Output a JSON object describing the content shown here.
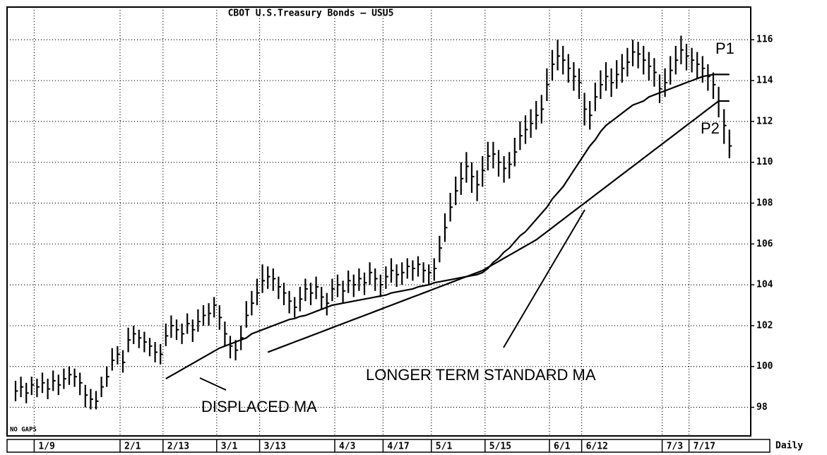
{
  "chart_data": {
    "type": "ohlc",
    "title": "CBOT U.S.Treasury Bonds — USU5",
    "period": "Daily",
    "note": "NO GAPS",
    "categories": [
      null,
      null,
      null,
      null,
      "1/9",
      null,
      null,
      null,
      null,
      null,
      null,
      null,
      null,
      null,
      null,
      null,
      null,
      null,
      null,
      null,
      "2/1",
      null,
      null,
      null,
      null,
      null,
      null,
      null,
      "2/13",
      null,
      null,
      null,
      null,
      null,
      null,
      null,
      null,
      null,
      "3/1",
      null,
      null,
      null,
      null,
      null,
      null,
      null,
      "3/13",
      null,
      null,
      null,
      null,
      null,
      null,
      null,
      null,
      null,
      null,
      null,
      null,
      null,
      "4/3",
      null,
      null,
      null,
      null,
      null,
      null,
      null,
      null,
      "4/17",
      null,
      null,
      null,
      null,
      null,
      null,
      null,
      null,
      "5/1",
      null,
      null,
      null,
      null,
      null,
      null,
      null,
      null,
      null,
      "5/15",
      null,
      null,
      null,
      null,
      null,
      null,
      null,
      null,
      null,
      null,
      null,
      "6/1",
      null,
      null,
      null,
      null,
      null,
      "6/12",
      null,
      null,
      null,
      null,
      null,
      null,
      null,
      null,
      null,
      null,
      null,
      null,
      null,
      null,
      "7/3",
      null,
      null,
      null,
      null,
      "7/17",
      null,
      null,
      null,
      null,
      null,
      null,
      null
    ],
    "high": [
      99.3,
      99.5,
      99.2,
      99.5,
      99.4,
      99.7,
      99.4,
      99.8,
      99.6,
      99.9,
      100.0,
      99.9,
      99.7,
      99.1,
      98.9,
      98.8,
      99.5,
      100.0,
      100.9,
      101.0,
      100.8,
      101.9,
      102.0,
      101.8,
      101.7,
      101.4,
      101.2,
      101.1,
      102.1,
      102.5,
      102.3,
      102.1,
      102.6,
      102.3,
      102.8,
      103.0,
      103.1,
      103.4,
      103.0,
      102.2,
      101.5,
      101.3,
      102.0,
      103.2,
      103.7,
      104.3,
      105.0,
      104.9,
      104.8,
      104.4,
      104.1,
      103.7,
      103.4,
      103.9,
      104.3,
      104.1,
      104.4,
      103.9,
      103.6,
      104.3,
      104.5,
      104.2,
      104.7,
      104.5,
      104.8,
      104.6,
      105.1,
      104.8,
      104.5,
      104.9,
      105.3,
      105.0,
      105.1,
      105.3,
      105.2,
      105.4,
      105.1,
      105.0,
      105.3,
      106.4,
      107.5,
      108.5,
      109.3,
      110.0,
      110.5,
      110.0,
      109.6,
      110.3,
      111.0,
      111.0,
      110.6,
      110.3,
      110.5,
      111.2,
      112.0,
      112.3,
      112.6,
      113.0,
      113.3,
      114.6,
      115.5,
      116.0,
      115.7,
      115.3,
      114.9,
      114.6,
      113.4,
      113.0,
      113.9,
      114.5,
      114.9,
      114.6,
      115.0,
      115.3,
      115.6,
      116.0,
      115.9,
      115.7,
      115.4,
      115.1,
      114.3,
      114.6,
      115.2,
      115.7,
      116.2,
      115.8,
      115.6,
      115.4,
      115.2,
      114.8,
      114.4,
      113.7,
      112.6,
      111.6
    ],
    "low": [
      98.3,
      98.5,
      98.2,
      98.6,
      98.5,
      98.7,
      98.4,
      98.8,
      98.6,
      98.9,
      99.1,
      99.0,
      98.6,
      98.0,
      97.9,
      97.9,
      98.5,
      99.0,
      99.8,
      100.1,
      99.7,
      100.7,
      101.1,
      100.9,
      100.7,
      100.5,
      100.2,
      100.1,
      101.0,
      101.4,
      101.3,
      101.1,
      101.6,
      101.2,
      101.7,
      102.0,
      102.0,
      102.4,
      101.8,
      101.0,
      100.4,
      100.3,
      100.8,
      101.9,
      102.5,
      103.0,
      103.6,
      103.8,
      103.7,
      103.3,
      103.0,
      102.6,
      102.4,
      102.7,
      103.2,
      103.0,
      103.3,
      102.8,
      102.5,
      103.2,
      103.4,
      103.1,
      103.6,
      103.4,
      103.7,
      103.5,
      104.0,
      103.7,
      103.4,
      103.8,
      104.1,
      103.9,
      104.0,
      104.3,
      104.2,
      104.4,
      104.1,
      104.0,
      104.2,
      105.1,
      106.1,
      107.1,
      107.9,
      108.4,
      109.0,
      108.5,
      108.1,
      108.8,
      109.6,
      109.7,
      109.3,
      109.0,
      109.2,
      109.8,
      110.6,
      110.9,
      111.2,
      111.6,
      111.9,
      113.0,
      114.0,
      114.5,
      114.3,
      113.9,
      113.5,
      113.1,
      111.8,
      111.6,
      112.5,
      113.1,
      113.5,
      113.2,
      113.6,
      113.9,
      114.2,
      114.7,
      114.6,
      114.3,
      114.0,
      113.7,
      112.9,
      113.2,
      113.8,
      114.3,
      114.8,
      114.5,
      114.4,
      114.1,
      113.9,
      113.5,
      113.1,
      112.2,
      110.9,
      110.2
    ],
    "close": [
      98.8,
      99.0,
      98.7,
      99.1,
      99.0,
      99.2,
      98.9,
      99.3,
      99.1,
      99.4,
      99.6,
      99.5,
      99.2,
      98.6,
      98.4,
      98.3,
      99.0,
      99.5,
      100.3,
      100.6,
      100.2,
      101.3,
      101.6,
      101.4,
      101.2,
      101.0,
      100.7,
      100.6,
      101.5,
      102.0,
      101.8,
      101.6,
      102.1,
      101.8,
      102.2,
      102.5,
      102.6,
      103.0,
      102.4,
      101.6,
      101.0,
      100.8,
      101.4,
      102.5,
      103.1,
      103.6,
      104.2,
      104.4,
      104.3,
      103.9,
      103.6,
      103.2,
      102.9,
      103.3,
      103.8,
      103.6,
      103.9,
      103.4,
      103.1,
      103.8,
      104.0,
      103.7,
      104.2,
      104.0,
      104.3,
      104.1,
      104.6,
      104.3,
      104.0,
      104.4,
      104.7,
      104.5,
      104.6,
      104.9,
      104.8,
      105.0,
      104.7,
      104.6,
      104.8,
      105.8,
      106.8,
      107.8,
      108.6,
      109.2,
      109.8,
      109.3,
      108.9,
      109.6,
      110.3,
      110.4,
      110.0,
      109.7,
      109.9,
      110.5,
      111.3,
      111.6,
      111.9,
      112.3,
      112.6,
      113.8,
      114.8,
      115.2,
      115.0,
      114.6,
      114.2,
      113.9,
      112.6,
      112.3,
      113.2,
      113.8,
      114.2,
      113.9,
      114.3,
      114.6,
      114.9,
      115.4,
      115.3,
      115.0,
      114.7,
      114.4,
      113.6,
      113.9,
      114.5,
      115.0,
      115.5,
      115.2,
      115.0,
      114.8,
      114.6,
      114.2,
      113.8,
      113.0,
      111.8,
      110.8
    ],
    "color": "#000000",
    "lines": [
      {
        "color": "#000000",
        "values": [
          null,
          null,
          null,
          null,
          null,
          null,
          null,
          null,
          null,
          null,
          null,
          null,
          null,
          null,
          null,
          null,
          null,
          null,
          null,
          null,
          null,
          null,
          null,
          null,
          null,
          null,
          null,
          null,
          99.4,
          99.55,
          99.7,
          99.85,
          100.0,
          100.15,
          100.3,
          100.45,
          100.6,
          100.75,
          100.9,
          101.0,
          101.1,
          101.2,
          101.3,
          101.4,
          101.6,
          101.7,
          101.8,
          101.9,
          102.0,
          102.1,
          102.2,
          102.3,
          102.35,
          102.45,
          102.5,
          102.6,
          102.7,
          102.8,
          102.9,
          103.0,
          103.05,
          103.1,
          103.15,
          103.2,
          103.25,
          103.3,
          103.35,
          103.4,
          103.45,
          103.5,
          103.6,
          103.65,
          103.7,
          103.75,
          103.8,
          103.9,
          103.95,
          104.0,
          104.1,
          104.15,
          104.2,
          104.25,
          104.3,
          104.35,
          104.4,
          104.45,
          104.5,
          104.6,
          104.8,
          105.1,
          105.3,
          105.6,
          105.8,
          106.1,
          106.4,
          106.6,
          106.9,
          107.2,
          107.5,
          107.8,
          108.2,
          108.5,
          108.8,
          109.2,
          109.6,
          110.0,
          110.4,
          110.8,
          111.1,
          111.5,
          111.8,
          112.0,
          112.2,
          112.4,
          112.6,
          112.8,
          112.9,
          113.0,
          113.2,
          113.3,
          113.4,
          113.5,
          113.6,
          113.7,
          113.8,
          113.9,
          114.0,
          114.1,
          114.2,
          114.25,
          114.3,
          114.3,
          114.3,
          114.3
        ]
      },
      {
        "color": "#000000",
        "values": [
          null,
          null,
          null,
          null,
          null,
          null,
          null,
          null,
          null,
          null,
          null,
          null,
          null,
          null,
          null,
          null,
          null,
          null,
          null,
          null,
          null,
          null,
          null,
          null,
          null,
          null,
          null,
          null,
          null,
          null,
          null,
          null,
          null,
          null,
          null,
          null,
          null,
          null,
          null,
          null,
          null,
          null,
          null,
          null,
          null,
          null,
          null,
          100.7,
          100.8,
          100.9,
          101.0,
          101.1,
          101.2,
          101.3,
          101.4,
          101.5,
          101.6,
          101.7,
          101.8,
          101.9,
          102.0,
          102.1,
          102.2,
          102.3,
          102.4,
          102.5,
          102.6,
          102.7,
          102.8,
          102.9,
          103.0,
          103.1,
          103.2,
          103.3,
          103.4,
          103.5,
          103.6,
          103.7,
          103.8,
          103.9,
          104.0,
          104.1,
          104.2,
          104.3,
          104.4,
          104.5,
          104.6,
          104.7,
          104.85,
          105.0,
          105.15,
          105.3,
          105.45,
          105.6,
          105.75,
          105.9,
          106.05,
          106.2,
          106.4,
          106.6,
          106.8,
          107.0,
          107.2,
          107.4,
          107.6,
          107.8,
          108.0,
          108.2,
          108.4,
          108.6,
          108.8,
          109.0,
          109.2,
          109.4,
          109.6,
          109.8,
          110.0,
          110.2,
          110.4,
          110.6,
          110.8,
          111.0,
          111.2,
          111.4,
          111.6,
          111.8,
          112.0,
          112.2,
          112.4,
          112.6,
          112.8,
          113.0,
          113.0,
          113.0
        ]
      }
    ],
    "annotations": [
      "P1",
      "P2",
      "DISPLACED MA",
      "LONGER TERM STANDARD MA"
    ],
    "ylim": [
      96.6,
      117.6
    ],
    "yticks": [
      98,
      100,
      102,
      104,
      106,
      108,
      110,
      112,
      114,
      116
    ],
    "grid": true
  }
}
